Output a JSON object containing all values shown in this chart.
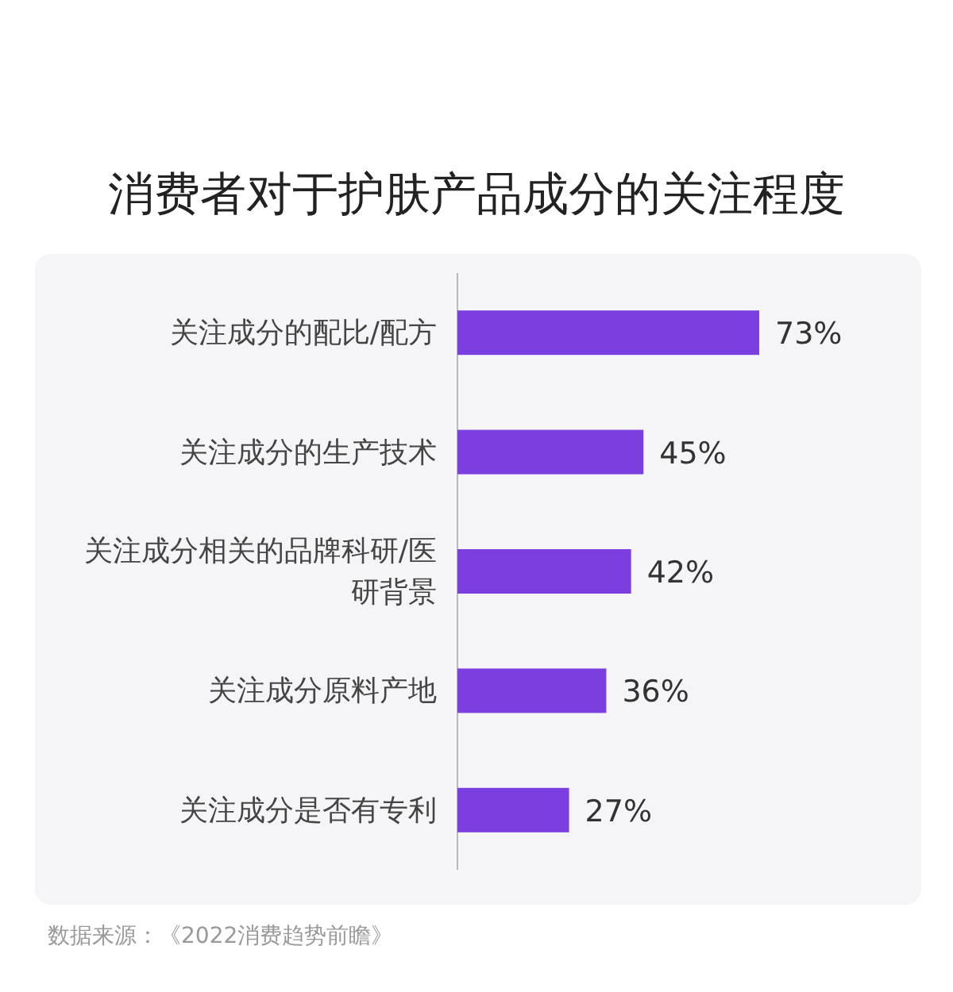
{
  "chart_data": {
    "type": "bar",
    "orientation": "horizontal",
    "title": "消费者对于护肤产品成分的关注程度",
    "categories": [
      "关注成分的配比/配方",
      "关注成分的生产技术",
      "关注成分相关的品牌科研/医研背景",
      "关注成分原料产地",
      "关注成分是否有专利"
    ],
    "values": [
      73,
      45,
      42,
      36,
      27
    ],
    "value_labels": [
      "73%",
      "45%",
      "42%",
      "36%",
      "27%"
    ],
    "color": "#7b3fe0",
    "annotations": [
      "数据来源：《2022消费趋势前瞻》"
    ]
  }
}
